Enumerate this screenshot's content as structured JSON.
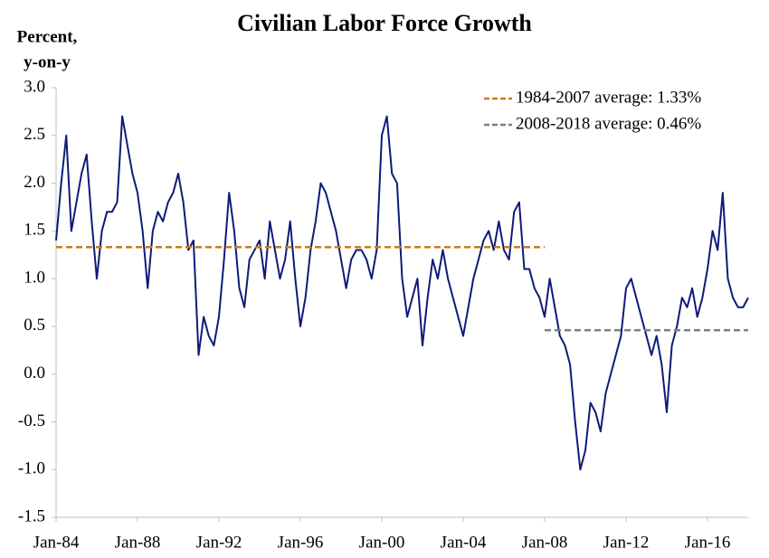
{
  "chart_data": {
    "type": "line",
    "title": "Civilian Labor Force Growth",
    "y_label": [
      "Percent,",
      "y-on-y"
    ],
    "ylim": [
      -1.5,
      3
    ],
    "yticks": [
      -1.5,
      {
        "value": -1,
        "label": "-1.0"
      },
      -0.5,
      {
        "value": 0,
        "label": "0.0"
      },
      0.5,
      {
        "value": 1,
        "label": "1.0"
      },
      1.5,
      {
        "value": 2,
        "label": "2.0"
      },
      2.5,
      {
        "value": 3,
        "label": "3.0"
      }
    ],
    "legend": "top-right",
    "categories": [
      "Jan-84",
      null,
      null,
      null,
      null,
      null,
      null,
      null,
      null,
      null,
      null,
      null,
      null,
      null,
      null,
      null,
      "Jan-88",
      null,
      null,
      null,
      null,
      null,
      null,
      null,
      null,
      null,
      null,
      null,
      null,
      null,
      null,
      null,
      "Jan-92",
      null,
      null,
      null,
      null,
      null,
      null,
      null,
      null,
      null,
      null,
      null,
      null,
      null,
      null,
      null,
      "Jan-96",
      null,
      null,
      null,
      null,
      null,
      null,
      null,
      null,
      null,
      null,
      null,
      null,
      null,
      null,
      null,
      "Jan-00",
      null,
      null,
      null,
      null,
      null,
      null,
      null,
      null,
      null,
      null,
      null,
      null,
      null,
      null,
      null,
      "Jan-04",
      null,
      null,
      null,
      null,
      null,
      null,
      null,
      null,
      null,
      null,
      null,
      null,
      null,
      null,
      null,
      "Jan-08",
      null,
      null,
      null,
      null,
      null,
      null,
      null,
      null,
      null,
      null,
      null,
      null,
      null,
      null,
      null,
      "Jan-12",
      null,
      null,
      null,
      null,
      null,
      null,
      null,
      null,
      null,
      null,
      null,
      null,
      null,
      null,
      null,
      "Jan-16",
      null,
      null,
      null,
      null,
      null,
      null,
      null,
      null
    ],
    "series": [
      {
        "color": "#0d1b78",
        "style": "solid",
        "values": [
          1.4,
          2.0,
          2.5,
          1.5,
          1.8,
          2.1,
          2.3,
          1.6,
          1.0,
          1.5,
          1.7,
          1.7,
          1.8,
          2.7,
          2.4,
          2.1,
          1.9,
          1.5,
          0.9,
          1.5,
          1.7,
          1.6,
          1.8,
          1.9,
          2.1,
          1.8,
          1.3,
          1.4,
          0.2,
          0.6,
          0.4,
          0.3,
          0.6,
          1.2,
          1.9,
          1.5,
          0.9,
          0.7,
          1.2,
          1.3,
          1.4,
          1.0,
          1.6,
          1.3,
          1.0,
          1.2,
          1.6,
          1.0,
          0.5,
          0.8,
          1.3,
          1.6,
          2.0,
          1.9,
          1.7,
          1.5,
          1.2,
          0.9,
          1.2,
          1.3,
          1.3,
          1.2,
          1.0,
          1.3,
          2.5,
          2.7,
          2.1,
          2.0,
          1.0,
          0.6,
          0.8,
          1.0,
          0.3,
          0.8,
          1.2,
          1.0,
          1.3,
          1.0,
          0.8,
          0.6,
          0.4,
          0.7,
          1.0,
          1.2,
          1.4,
          1.5,
          1.3,
          1.6,
          1.3,
          1.2,
          1.7,
          1.8,
          1.1,
          1.1,
          0.9,
          0.8,
          0.6,
          1.0,
          0.7,
          0.4,
          0.3,
          0.1,
          -0.5,
          -1.0,
          -0.8,
          -0.3,
          -0.4,
          -0.6,
          -0.2,
          0.0,
          0.2,
          0.4,
          0.9,
          1.0,
          0.8,
          0.6,
          0.4,
          0.2,
          0.4,
          0.1,
          -0.4,
          0.3,
          0.5,
          0.8,
          0.7,
          0.9,
          0.6,
          0.8,
          1.1,
          1.5,
          1.3,
          1.9,
          1.0,
          0.8,
          0.7,
          0.7,
          0.8
        ]
      },
      {
        "name": "1984-2007 average: 1.33%",
        "color": "#c47f1c",
        "style": "dashed",
        "values": [
          1.33,
          1.33,
          1.33,
          1.33,
          1.33,
          1.33,
          1.33,
          1.33,
          1.33,
          1.33,
          1.33,
          1.33,
          1.33,
          1.33,
          1.33,
          1.33,
          1.33,
          1.33,
          1.33,
          1.33,
          1.33,
          1.33,
          1.33,
          1.33,
          1.33,
          1.33,
          1.33,
          1.33,
          1.33,
          1.33,
          1.33,
          1.33,
          1.33,
          1.33,
          1.33,
          1.33,
          1.33,
          1.33,
          1.33,
          1.33,
          1.33,
          1.33,
          1.33,
          1.33,
          1.33,
          1.33,
          1.33,
          1.33,
          1.33,
          1.33,
          1.33,
          1.33,
          1.33,
          1.33,
          1.33,
          1.33,
          1.33,
          1.33,
          1.33,
          1.33,
          1.33,
          1.33,
          1.33,
          1.33,
          1.33,
          1.33,
          1.33,
          1.33,
          1.33,
          1.33,
          1.33,
          1.33,
          1.33,
          1.33,
          1.33,
          1.33,
          1.33,
          1.33,
          1.33,
          1.33,
          1.33,
          1.33,
          1.33,
          1.33,
          1.33,
          1.33,
          1.33,
          1.33,
          1.33,
          1.33,
          1.33,
          1.33,
          1.33,
          1.33,
          1.33,
          1.33,
          1.33,
          null,
          null,
          null,
          null,
          null,
          null,
          null,
          null,
          null,
          null,
          null,
          null,
          null,
          null,
          null,
          null,
          null,
          null,
          null,
          null,
          null,
          null,
          null,
          null,
          null,
          null,
          null,
          null,
          null,
          null,
          null,
          null,
          null,
          null,
          null,
          null,
          null,
          null,
          null,
          null
        ]
      },
      {
        "name": "2008-2018 average: 0.46%",
        "color": "#7f7f7f",
        "style": "dashed",
        "values": [
          null,
          null,
          null,
          null,
          null,
          null,
          null,
          null,
          null,
          null,
          null,
          null,
          null,
          null,
          null,
          null,
          null,
          null,
          null,
          null,
          null,
          null,
          null,
          null,
          null,
          null,
          null,
          null,
          null,
          null,
          null,
          null,
          null,
          null,
          null,
          null,
          null,
          null,
          null,
          null,
          null,
          null,
          null,
          null,
          null,
          null,
          null,
          null,
          null,
          null,
          null,
          null,
          null,
          null,
          null,
          null,
          null,
          null,
          null,
          null,
          null,
          null,
          null,
          null,
          null,
          null,
          null,
          null,
          null,
          null,
          null,
          null,
          null,
          null,
          null,
          null,
          null,
          null,
          null,
          null,
          null,
          null,
          null,
          null,
          null,
          null,
          null,
          null,
          null,
          null,
          null,
          null,
          null,
          null,
          null,
          null,
          0.46,
          0.46,
          0.46,
          0.46,
          0.46,
          0.46,
          0.46,
          0.46,
          0.46,
          0.46,
          0.46,
          0.46,
          0.46,
          0.46,
          0.46,
          0.46,
          0.46,
          0.46,
          0.46,
          0.46,
          0.46,
          0.46,
          0.46,
          0.46,
          0.46,
          0.46,
          0.46,
          0.46,
          0.46,
          0.46,
          0.46,
          0.46,
          0.46,
          0.46,
          0.46,
          0.46,
          0.46,
          0.46,
          0.46,
          0.46,
          0.46
        ]
      }
    ]
  }
}
